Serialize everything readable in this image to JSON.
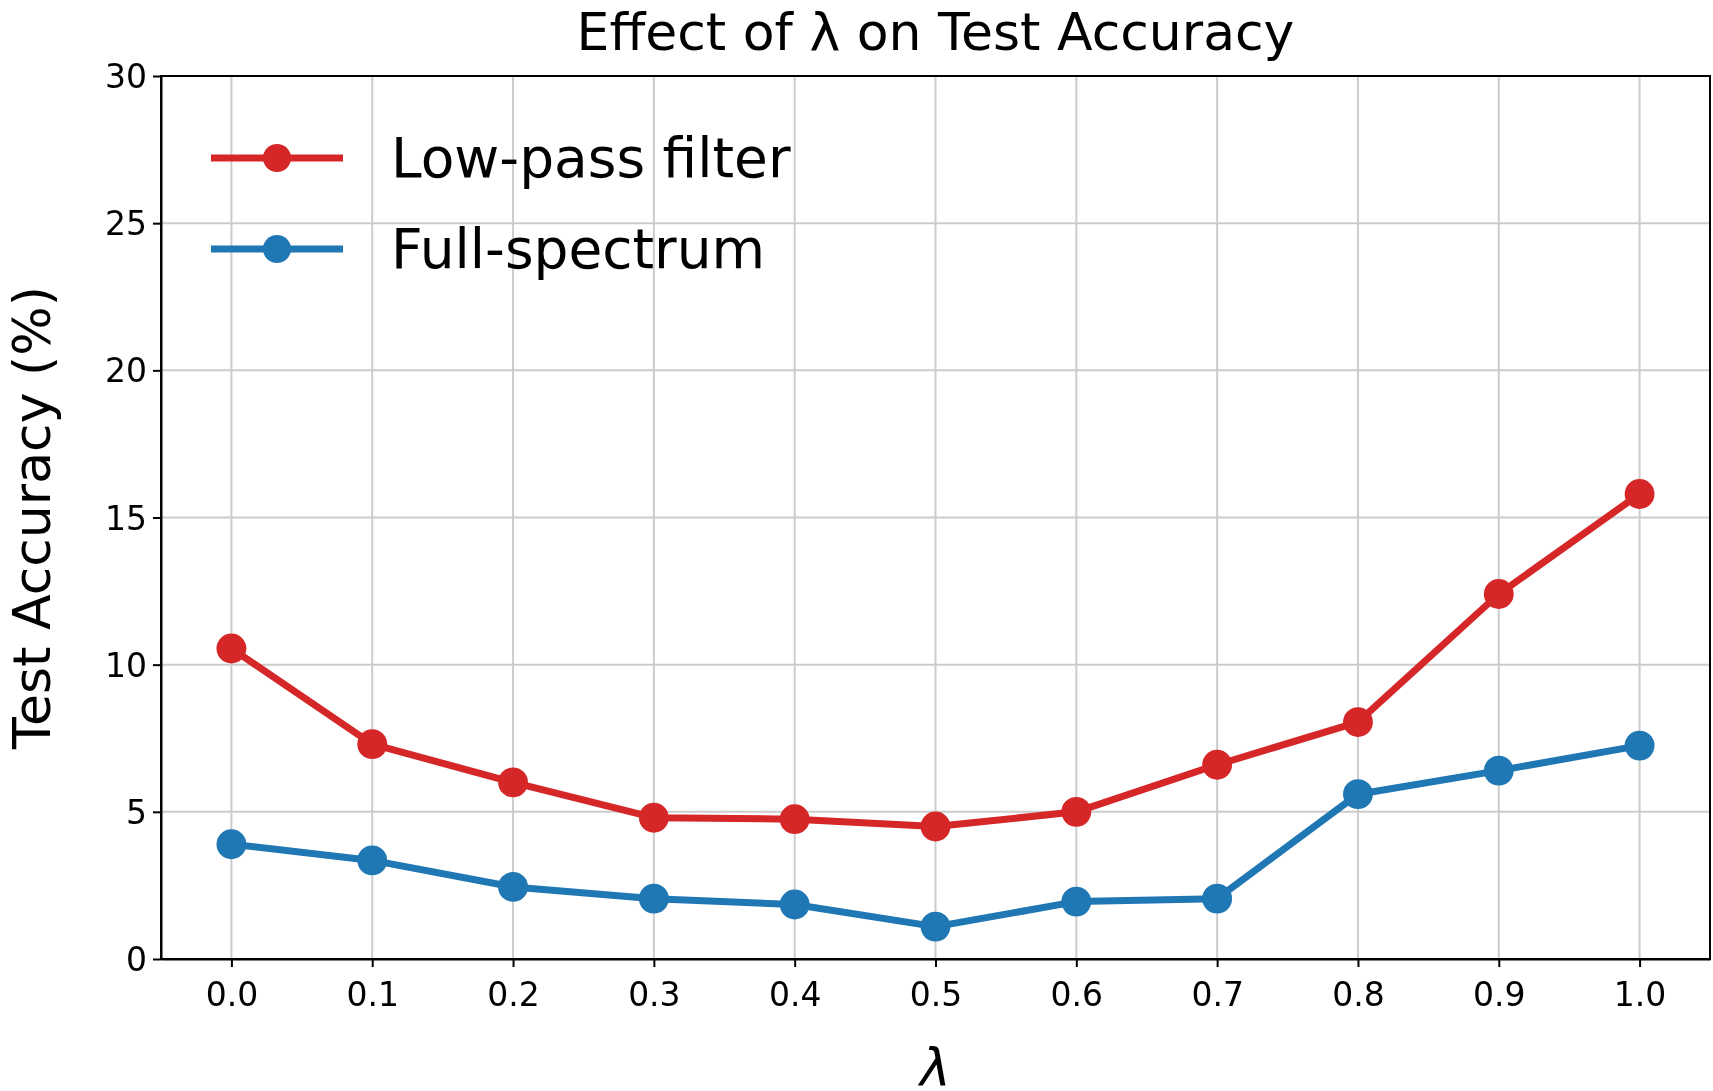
{
  "chart_data": {
    "type": "line",
    "title": "Effect of λ on Test Accuracy",
    "xlabel": "λ",
    "ylabel": "Test Accuracy (%)",
    "x": [
      0,
      0.1,
      0.2,
      0.3,
      0.4,
      0.5,
      0.6,
      0.7,
      0.8,
      0.9,
      1.0
    ],
    "series": [
      {
        "name": "Low-pass filter",
        "color": "#d62728",
        "values": [
          10.55,
          7.3,
          6.0,
          4.8,
          4.75,
          4.5,
          5.0,
          6.6,
          8.05,
          12.4,
          15.8
        ]
      },
      {
        "name": "Full-spectrum",
        "color": "#1f77b4",
        "values": [
          3.9,
          3.35,
          2.45,
          2.05,
          1.85,
          1.1,
          1.95,
          2.05,
          5.6,
          6.4,
          7.25
        ]
      }
    ],
    "xlim": [
      -0.05,
      1.05
    ],
    "ylim": [
      0,
      30
    ],
    "xticks": [
      {
        "value": 0,
        "label": "0.0"
      },
      0.1,
      0.2,
      0.3,
      0.4,
      0.5,
      0.6,
      0.7,
      0.8,
      0.9,
      {
        "value": 1,
        "label": "1.0"
      }
    ],
    "yticks": [
      0,
      5,
      10,
      15,
      20,
      25,
      30
    ],
    "grid": true,
    "legend": "top left",
    "marker": "circle",
    "line_style": "solid"
  }
}
